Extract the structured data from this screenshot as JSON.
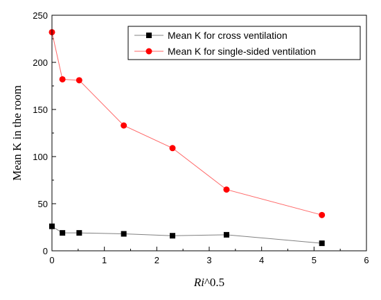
{
  "chart_data": {
    "type": "line",
    "xlabel_italic": "Ri",
    "xlabel_rest": "^0.5",
    "ylabel": "Mean K in the room",
    "xlim": [
      0,
      6
    ],
    "ylim": [
      0,
      250
    ],
    "x_ticks": [
      "0",
      "1",
      "2",
      "3",
      "4",
      "5",
      "6"
    ],
    "y_ticks": [
      "0",
      "50",
      "100",
      "150",
      "200",
      "250"
    ],
    "legend_position": "top-right",
    "series": [
      {
        "name": "Mean K for cross ventilation",
        "color": "#000000",
        "line_color": "#808080",
        "marker": "square",
        "x": [
          0,
          0.2,
          0.52,
          1.37,
          2.3,
          3.33,
          5.15
        ],
        "y": [
          26,
          19,
          19,
          18,
          16,
          17,
          8
        ]
      },
      {
        "name": "Mean K for single-sided ventilation",
        "color": "#ff0000",
        "line_color": "#ff6666",
        "marker": "circle",
        "x": [
          0,
          0.2,
          0.52,
          1.37,
          2.3,
          3.33,
          5.15
        ],
        "y": [
          232,
          182,
          181,
          133,
          109,
          65,
          38
        ]
      }
    ]
  }
}
